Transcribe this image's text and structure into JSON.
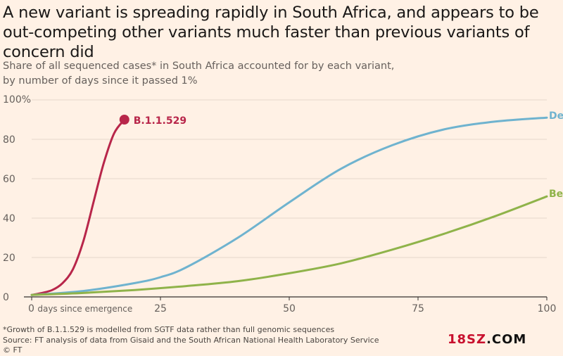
{
  "title": "A new variant is spreading rapidly in South Africa, and appears to be out-competing other variants much faster than previous variants of concern did",
  "subtitle_line1": "Share of all sequenced cases* in South Africa accounted for by each variant,",
  "subtitle_line2": "by number of days since it passed 1%",
  "footnote_line1": "*Growth of B.1.1.529 is modelled from SGTF data rather than full genomic sequences",
  "footnote_line2": "Source: FT analysis of data from Gisaid and the South African National Health Laboratory Service",
  "footnote_line3": "© FT",
  "watermark": {
    "red": "18SZ",
    "black": ".COM"
  },
  "chart_data": {
    "type": "line",
    "xlabel": "days since emergence",
    "xlim": [
      0,
      100
    ],
    "ylim": [
      0,
      100
    ],
    "x_ticks": [
      0,
      25,
      50,
      75,
      100
    ],
    "y_ticks": [
      0,
      20,
      40,
      60,
      80,
      100
    ],
    "y_tick_labels": [
      "0",
      "20",
      "40",
      "60",
      "80",
      "100%"
    ],
    "x_tick_labels": [
      "0 days since emergence",
      "25",
      "50",
      "75",
      "100"
    ],
    "grid": true,
    "series": [
      {
        "name": "B.1.1.529",
        "color": "#b8264a",
        "x": [
          0,
          2,
          4,
          6,
          8,
          10,
          12,
          14,
          16,
          18
        ],
        "y": [
          1,
          2,
          3.5,
          7,
          14,
          28,
          48,
          68,
          83,
          90
        ],
        "end_marker": true
      },
      {
        "name": "Delta",
        "color": "#6fb3cf",
        "x": [
          0,
          10,
          20,
          25,
          30,
          40,
          50,
          60,
          70,
          80,
          90,
          100
        ],
        "y": [
          1,
          3,
          7,
          10,
          15,
          30,
          48,
          65,
          77,
          85,
          89,
          91
        ]
      },
      {
        "name": "Beta",
        "color": "#8fb34a",
        "x": [
          0,
          10,
          20,
          30,
          40,
          50,
          60,
          70,
          80,
          90,
          100
        ],
        "y": [
          1,
          2,
          3.5,
          5.5,
          8,
          12,
          17,
          24,
          32,
          41,
          51
        ]
      }
    ]
  }
}
